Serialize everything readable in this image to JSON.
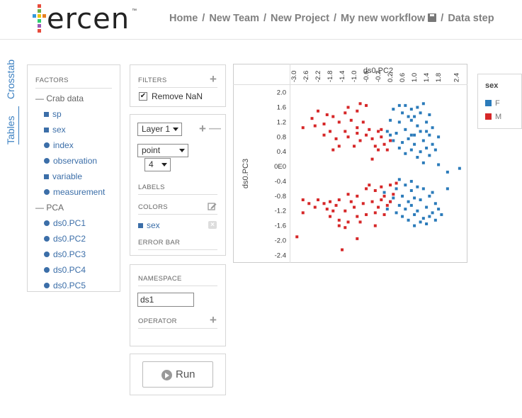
{
  "header": {
    "logo_text": "ercen",
    "logo_tm": "™",
    "breadcrumb": [
      "Home",
      "New Team",
      "New Project",
      "My new workflow",
      "Data step"
    ],
    "separator": "/"
  },
  "side_tabs": {
    "crosstab": "Crosstab",
    "tables": "Tables"
  },
  "factors": {
    "title": "FACTORS",
    "groups": [
      {
        "label": "Crab data",
        "toggle": "—",
        "items": [
          {
            "label": "sp",
            "kind": "square"
          },
          {
            "label": "sex",
            "kind": "square"
          },
          {
            "label": "index",
            "kind": "circle"
          },
          {
            "label": "observation",
            "kind": "circle"
          },
          {
            "label": "variable",
            "kind": "square"
          },
          {
            "label": "measurement",
            "kind": "circle"
          }
        ]
      },
      {
        "label": "PCA",
        "toggle": "—",
        "items": [
          {
            "label": "ds0.PC1",
            "kind": "circle"
          },
          {
            "label": "ds0.PC2",
            "kind": "circle"
          },
          {
            "label": "ds0.PC3",
            "kind": "circle"
          },
          {
            "label": "ds0.PC4",
            "kind": "circle"
          },
          {
            "label": "ds0.PC5",
            "kind": "circle"
          }
        ]
      }
    ]
  },
  "filters": {
    "title": "FILTERS",
    "remove_nan_label": "Remove NaN",
    "remove_nan_checked": true,
    "check_mark": "✔"
  },
  "layer": {
    "layer_select": "Layer 1",
    "geom_select": "point",
    "size_select": "4",
    "labels_title": "LABELS",
    "colors_title": "COLORS",
    "color_factor": "sex",
    "error_bar_title": "ERROR BAR"
  },
  "namespace": {
    "title": "NAMESPACE",
    "value": "ds1",
    "operator_title": "OPERATOR"
  },
  "run": {
    "label": "Run"
  },
  "icons": {
    "plus": "+",
    "minus": "—",
    "edit": "edit-icon",
    "remove": "remove-icon",
    "play": "play-icon",
    "save": "save-icon"
  },
  "colors": {
    "F": "#2b7bba",
    "M": "#d62728",
    "link": "#3b6ea8"
  },
  "legend": {
    "title": "sex",
    "entries": [
      "F",
      "M"
    ]
  },
  "chart_data": {
    "type": "scatter",
    "xlabel": "ds0.PC2",
    "ylabel": "ds0.PC3",
    "x_ticks": [
      "-3.0",
      "-2.6",
      "-2.2",
      "-1.8",
      "-1.4",
      "-1.0",
      "-0.6",
      "-0.2",
      "0.2",
      "0.6",
      "1.0",
      "1.4",
      "1.8",
      "2.4"
    ],
    "y_ticks": [
      "2.0",
      "1.6",
      "1.2",
      "0.8",
      "0.4",
      "0E0",
      "-0.4",
      "-0.8",
      "-1.2",
      "-1.6",
      "-2.0",
      "-2.4"
    ],
    "xlim": [
      -3.0,
      2.55
    ],
    "ylim": [
      -2.45,
      2.05
    ],
    "series": [
      {
        "name": "F",
        "points": [
          [
            0.5,
            1.65
          ],
          [
            0.7,
            1.65
          ],
          [
            0.9,
            1.55
          ],
          [
            1.1,
            1.6
          ],
          [
            1.3,
            1.7
          ],
          [
            0.3,
            1.55
          ],
          [
            0.6,
            1.45
          ],
          [
            1.0,
            1.35
          ],
          [
            1.2,
            1.45
          ],
          [
            1.5,
            1.4
          ],
          [
            0.2,
            1.25
          ],
          [
            0.5,
            1.2
          ],
          [
            0.9,
            1.25
          ],
          [
            1.1,
            1.1
          ],
          [
            1.4,
            1.2
          ],
          [
            1.6,
            1.05
          ],
          [
            0.1,
            0.95
          ],
          [
            0.4,
            0.9
          ],
          [
            0.7,
            1.0
          ],
          [
            0.9,
            0.85
          ],
          [
            1.2,
            0.95
          ],
          [
            1.5,
            0.85
          ],
          [
            1.8,
            0.8
          ],
          [
            0.3,
            0.7
          ],
          [
            0.6,
            0.65
          ],
          [
            0.8,
            0.75
          ],
          [
            1.0,
            0.6
          ],
          [
            1.3,
            0.7
          ],
          [
            1.6,
            0.6
          ],
          [
            0.5,
            0.5
          ],
          [
            0.9,
            0.45
          ],
          [
            1.2,
            0.4
          ],
          [
            1.4,
            0.5
          ],
          [
            1.7,
            0.45
          ],
          [
            0.7,
            0.35
          ],
          [
            1.1,
            0.25
          ],
          [
            1.5,
            0.3
          ],
          [
            1.3,
            0.1
          ],
          [
            1.8,
            0.05
          ],
          [
            2.1,
            -0.15
          ],
          [
            2.5,
            -0.05
          ],
          [
            1.0,
            0.85
          ],
          [
            1.4,
            0.95
          ],
          [
            0.2,
            0.85
          ],
          [
            0.8,
            1.35
          ],
          [
            0.4,
            -0.6
          ],
          [
            0.7,
            -0.5
          ],
          [
            0.9,
            -0.65
          ],
          [
            1.1,
            -0.55
          ],
          [
            1.3,
            -0.6
          ],
          [
            1.6,
            -0.7
          ],
          [
            0.3,
            -0.85
          ],
          [
            0.6,
            -0.8
          ],
          [
            0.8,
            -0.95
          ],
          [
            1.0,
            -0.85
          ],
          [
            1.2,
            -0.9
          ],
          [
            1.5,
            -0.8
          ],
          [
            1.7,
            -1.0
          ],
          [
            0.5,
            -1.05
          ],
          [
            0.7,
            -1.15
          ],
          [
            0.9,
            -1.05
          ],
          [
            1.1,
            -1.2
          ],
          [
            1.4,
            -1.1
          ],
          [
            1.6,
            -1.25
          ],
          [
            1.8,
            -1.15
          ],
          [
            0.6,
            -1.35
          ],
          [
            1.0,
            -1.3
          ],
          [
            1.3,
            -1.4
          ],
          [
            1.5,
            -1.35
          ],
          [
            1.7,
            -1.45
          ],
          [
            0.8,
            -1.45
          ],
          [
            1.2,
            -1.5
          ],
          [
            0.4,
            -1.25
          ],
          [
            0.2,
            -0.95
          ],
          [
            1.9,
            -1.3
          ],
          [
            0.9,
            -0.4
          ],
          [
            0.5,
            -0.35
          ],
          [
            2.1,
            -0.6
          ],
          [
            1.0,
            -1.6
          ],
          [
            1.4,
            -1.55
          ],
          [
            0.1,
            -1.15
          ],
          [
            0.0,
            -0.7
          ]
        ]
      },
      {
        "name": "M",
        "points": [
          [
            -2.2,
            1.5
          ],
          [
            -1.9,
            1.4
          ],
          [
            -1.7,
            1.35
          ],
          [
            -1.3,
            1.45
          ],
          [
            -0.9,
            1.5
          ],
          [
            -0.6,
            1.65
          ],
          [
            -1.1,
            1.25
          ],
          [
            -1.5,
            1.2
          ],
          [
            -2.0,
            1.15
          ],
          [
            -2.4,
            1.3
          ],
          [
            -0.7,
            1.2
          ],
          [
            -1.8,
            0.95
          ],
          [
            -1.3,
            0.95
          ],
          [
            -0.9,
            0.9
          ],
          [
            -0.5,
            1.0
          ],
          [
            -0.2,
            0.95
          ],
          [
            -2.7,
            1.05
          ],
          [
            -1.6,
            0.75
          ],
          [
            -1.2,
            0.8
          ],
          [
            -0.8,
            0.7
          ],
          [
            -0.4,
            0.75
          ],
          [
            -0.1,
            0.8
          ],
          [
            0.0,
            0.6
          ],
          [
            -0.3,
            0.55
          ],
          [
            -1.0,
            0.55
          ],
          [
            -1.5,
            0.55
          ],
          [
            -2.0,
            0.85
          ],
          [
            -0.6,
            0.85
          ],
          [
            -0.2,
            0.45
          ],
          [
            0.1,
            0.45
          ],
          [
            -1.7,
            0.45
          ],
          [
            -0.4,
            0.2
          ],
          [
            -0.9,
            1.05
          ],
          [
            -1.2,
            1.6
          ],
          [
            -2.3,
            1.1
          ],
          [
            -0.8,
            1.7
          ],
          [
            -0.1,
            1.0
          ],
          [
            0.2,
            0.7
          ],
          [
            -2.9,
            -1.9
          ],
          [
            -2.7,
            -0.9
          ],
          [
            -2.2,
            -0.9
          ],
          [
            -1.8,
            -0.95
          ],
          [
            -1.5,
            -0.9
          ],
          [
            -1.2,
            -0.75
          ],
          [
            -0.9,
            -0.8
          ],
          [
            -0.6,
            -0.6
          ],
          [
            -0.3,
            -0.65
          ],
          [
            -0.1,
            -0.55
          ],
          [
            0.2,
            -0.5
          ],
          [
            -2.7,
            -1.25
          ],
          [
            -2.3,
            -1.1
          ],
          [
            -1.9,
            -1.15
          ],
          [
            -1.6,
            -1.05
          ],
          [
            -1.3,
            -1.2
          ],
          [
            -1.0,
            -1.1
          ],
          [
            -0.7,
            -1.0
          ],
          [
            -0.4,
            -0.95
          ],
          [
            -0.1,
            -0.9
          ],
          [
            0.1,
            -1.05
          ],
          [
            -1.8,
            -1.35
          ],
          [
            -1.5,
            -1.45
          ],
          [
            -1.2,
            -1.5
          ],
          [
            -0.9,
            -1.35
          ],
          [
            -0.6,
            -1.3
          ],
          [
            -0.3,
            -1.25
          ],
          [
            0.0,
            -1.3
          ],
          [
            -1.5,
            -1.6
          ],
          [
            -1.3,
            -1.65
          ],
          [
            -0.3,
            -1.6
          ],
          [
            -0.9,
            -1.95
          ],
          [
            -1.4,
            -2.25
          ],
          [
            -2.0,
            -1.0
          ],
          [
            0.3,
            -0.75
          ],
          [
            -0.5,
            -0.5
          ],
          [
            0.2,
            -0.95
          ],
          [
            -0.8,
            -1.5
          ],
          [
            -1.1,
            -0.95
          ],
          [
            -1.7,
            -1.2
          ],
          [
            -0.2,
            -1.1
          ],
          [
            0.4,
            -0.45
          ],
          [
            -2.5,
            -1.0
          ],
          [
            0.0,
            -0.8
          ]
        ]
      }
    ]
  }
}
